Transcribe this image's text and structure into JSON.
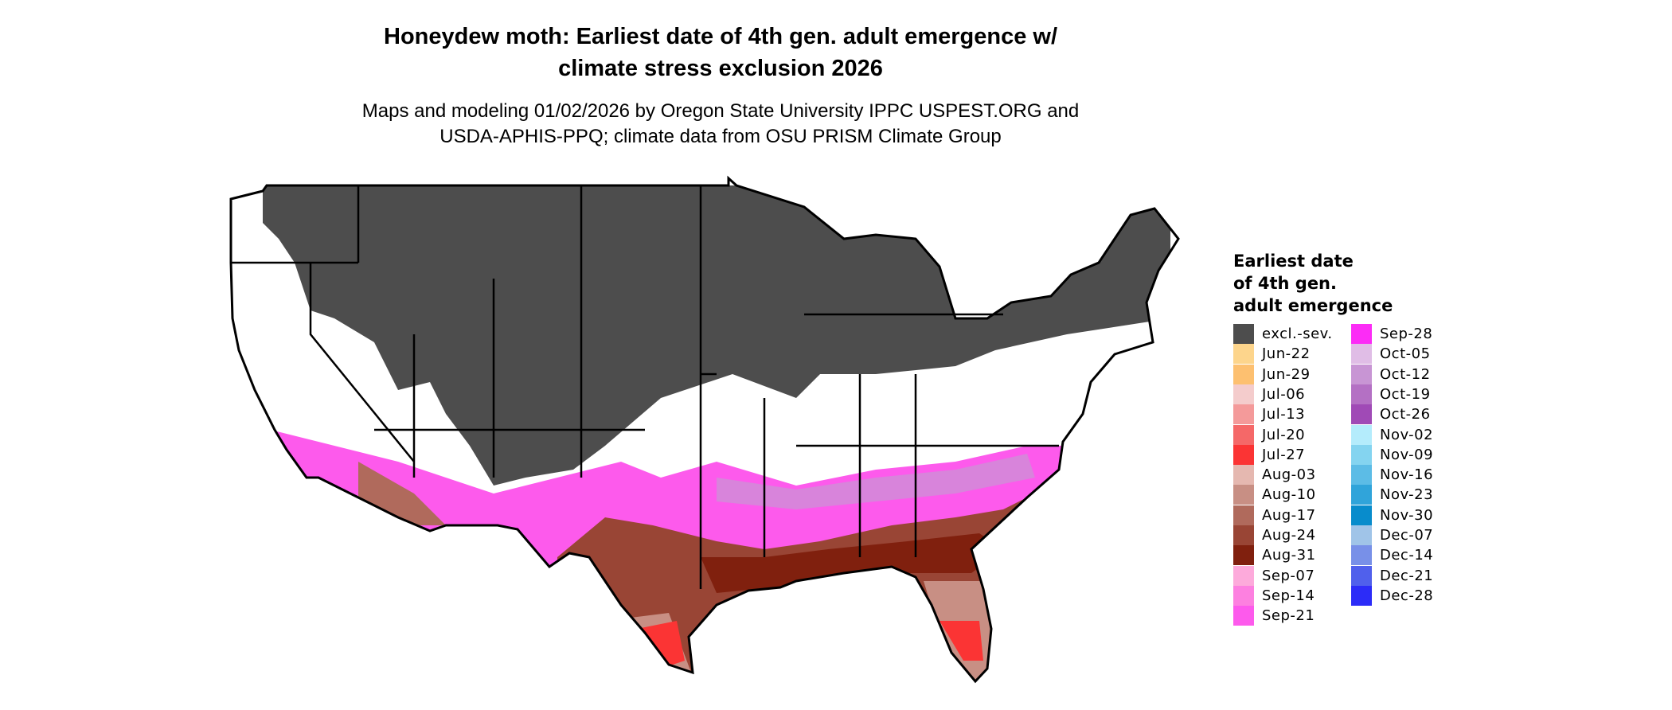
{
  "title_line1": "Honeydew moth: Earliest date of 4th gen. adult emergence w/",
  "title_line2": "climate stress exclusion 2026",
  "subtitle_line1": "Maps and modeling 01/02/2026 by Oregon State University IPPC USPEST.ORG and",
  "subtitle_line2": "USDA-APHIS-PPQ; climate data from OSU PRISM Climate Group",
  "chart_data": {
    "type": "choropleth-map",
    "region": "Contiguous United States",
    "legend": {
      "title_lines": [
        "Earliest date",
        "of 4th gen.",
        "adult emergence"
      ],
      "placement": "right",
      "entries": [
        {
          "label": "excl.-sev.",
          "color": "#4d4d4d"
        },
        {
          "label": "Jun-22",
          "color": "#fdd58c"
        },
        {
          "label": "Jun-29",
          "color": "#fdc070"
        },
        {
          "label": "Jul-06",
          "color": "#f4cccc"
        },
        {
          "label": "Jul-13",
          "color": "#f49a9a"
        },
        {
          "label": "Jul-20",
          "color": "#f56868"
        },
        {
          "label": "Jul-27",
          "color": "#fb3434"
        },
        {
          "label": "Aug-03",
          "color": "#e5b8b0"
        },
        {
          "label": "Aug-10",
          "color": "#c88f84"
        },
        {
          "label": "Aug-17",
          "color": "#b06a5c"
        },
        {
          "label": "Aug-24",
          "color": "#994535"
        },
        {
          "label": "Aug-31",
          "color": "#80200e"
        },
        {
          "label": "Sep-07",
          "color": "#fdaadb"
        },
        {
          "label": "Sep-14",
          "color": "#fd80e0"
        },
        {
          "label": "Sep-21",
          "color": "#fd5aec"
        },
        {
          "label": "Sep-28",
          "color": "#fc2cf6"
        },
        {
          "label": "Oct-05",
          "color": "#e0bde6"
        },
        {
          "label": "Oct-12",
          "color": "#c895d4"
        },
        {
          "label": "Oct-19",
          "color": "#b470c4"
        },
        {
          "label": "Oct-26",
          "color": "#a04ab6"
        },
        {
          "label": "Nov-02",
          "color": "#b4ecfc"
        },
        {
          "label": "Nov-09",
          "color": "#84d4f0"
        },
        {
          "label": "Nov-16",
          "color": "#5cbce6"
        },
        {
          "label": "Nov-23",
          "color": "#30a4da"
        },
        {
          "label": "Nov-30",
          "color": "#088ccc"
        },
        {
          "label": "Dec-07",
          "color": "#a0c4e8"
        },
        {
          "label": "Dec-14",
          "color": "#7890e8"
        },
        {
          "label": "Dec-21",
          "color": "#5060ec"
        },
        {
          "label": "Dec-28",
          "color": "#2c2cf8"
        }
      ]
    }
  }
}
